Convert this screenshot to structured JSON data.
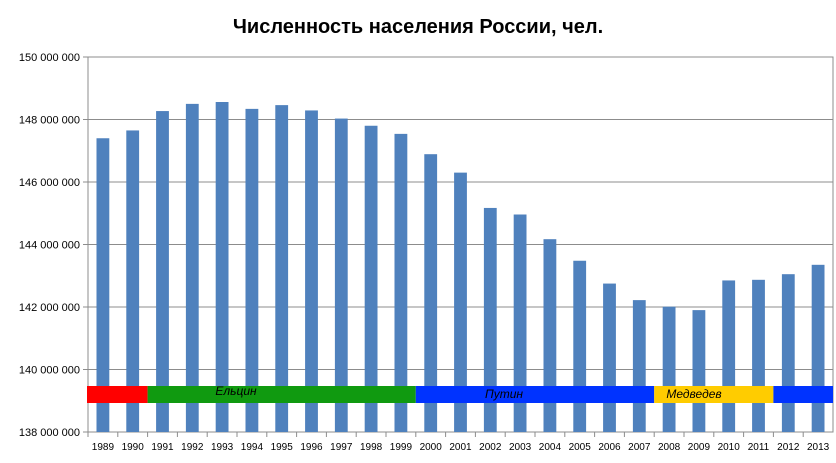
{
  "chart_data": {
    "type": "bar",
    "title": "Численность населения России, чел.",
    "xlabel": "",
    "ylabel": "",
    "ylim": [
      138000000,
      150000000
    ],
    "yticks": [
      138000000,
      140000000,
      142000000,
      144000000,
      146000000,
      148000000,
      150000000
    ],
    "ytick_labels": [
      "138 000 000",
      "140 000 000",
      "142 000 000",
      "144 000 000",
      "146 000 000",
      "148 000 000",
      "150 000 000"
    ],
    "categories": [
      "1989",
      "1990",
      "1991",
      "1992",
      "1993",
      "1994",
      "1995",
      "1996",
      "1997",
      "1998",
      "1999",
      "2000",
      "2001",
      "2002",
      "2003",
      "2004",
      "2005",
      "2006",
      "2007",
      "2008",
      "2009",
      "2010",
      "2011",
      "2012",
      "2013"
    ],
    "values": [
      147400000,
      147650000,
      148270000,
      148500000,
      148560000,
      148340000,
      148460000,
      148290000,
      148030000,
      147800000,
      147540000,
      146890000,
      146300000,
      145170000,
      144960000,
      144170000,
      143480000,
      142750000,
      142220000,
      142010000,
      141900000,
      142850000,
      142870000,
      143050000,
      143350000
    ],
    "bar_color": "#4f81bd",
    "grid": true,
    "legend": "none",
    "annotation_band": [
      {
        "label": "",
        "from": "1989",
        "to": "1991",
        "color": "#ff0000"
      },
      {
        "label": "Ельцин",
        "from": "1991",
        "to": "2000",
        "color": "#109a10"
      },
      {
        "label": "Путин",
        "from": "2000",
        "to": "2008",
        "color": "#0033ff"
      },
      {
        "label": "Медведев",
        "from": "2008",
        "to": "2012",
        "color": "#ffcc00"
      },
      {
        "label": "",
        "from": "2012",
        "to": "end",
        "color": "#0033ff"
      }
    ]
  }
}
